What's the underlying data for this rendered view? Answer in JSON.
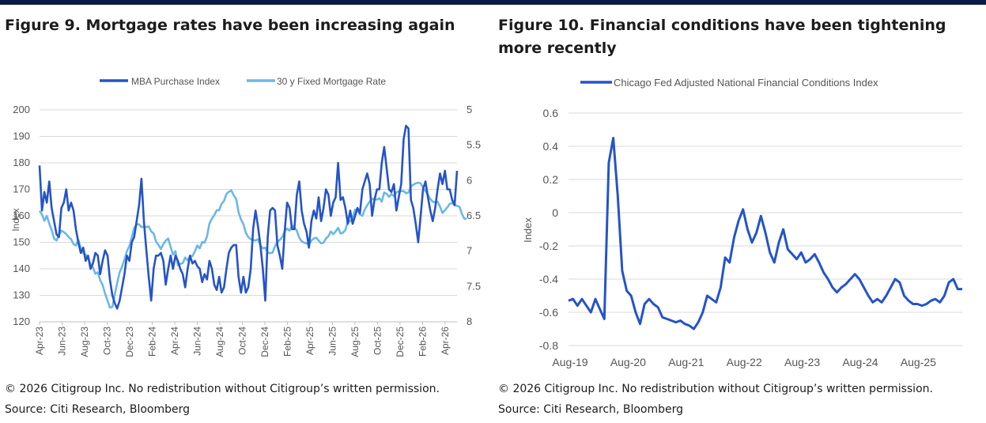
{
  "left": {
    "title": "Figure 9. Mortgage rates have been increasing again",
    "copyright": "© 2026 Citigroup Inc. No redistribution without Citigroup’s written permission.",
    "source": "Source: Citi Research, Bloomberg"
  },
  "right": {
    "title": "Figure 10. Financial conditions have been tightening more recently",
    "copyright": "© 2026 Citigroup Inc. No redistribution without Citigroup’s written permission.",
    "source": "Source: Citi Research, Bloomberg"
  },
  "colors": {
    "dark_blue": "#2554c7",
    "light_blue": "#6bb8e6",
    "grid": "#d9d9d9",
    "header_bar": "#0b1a45"
  },
  "chart_data": [
    {
      "type": "line",
      "title": "",
      "xlabel": "",
      "ylabel": "Index",
      "ylabel_right": "",
      "ylim": [
        120,
        200
      ],
      "ylim_right": [
        5,
        8
      ],
      "right_axis_inverted": true,
      "y_ticks": [
        120,
        130,
        140,
        150,
        160,
        170,
        180,
        190,
        200
      ],
      "y_ticks_right": [
        "5",
        "5.5",
        "6",
        "6.5",
        "7",
        "7.5",
        "8"
      ],
      "x_ticks": [
        "Apr-23",
        "Jun-23",
        "Aug-23",
        "Oct-23",
        "Dec-23",
        "Feb-24",
        "Apr-24",
        "Jun-24",
        "Aug-24",
        "Oct-24",
        "Dec-24",
        "Feb-25",
        "Apr-25",
        "Jun-25",
        "Aug-25",
        "Oct-25",
        "Dec-25",
        "Feb-26",
        "Apr-26"
      ],
      "grid": true,
      "legend_position": "top-center",
      "series": [
        {
          "name": "MBA Purchase Index",
          "axis": "left",
          "x_start": "Apr-23",
          "frequency": "weekly",
          "values": [
            179,
            162,
            169,
            165,
            173,
            163,
            158,
            153,
            152,
            163,
            165,
            170,
            162,
            165,
            162,
            155,
            150,
            146,
            148,
            143,
            145,
            140,
            142,
            146,
            145,
            138,
            143,
            147,
            145,
            136,
            130,
            127,
            125,
            128,
            133,
            138,
            145,
            143,
            150,
            152,
            158,
            164,
            174,
            158,
            147,
            137,
            128,
            140,
            145,
            145,
            146,
            143,
            134,
            140,
            145,
            140,
            145,
            143,
            140,
            138,
            133,
            140,
            145,
            142,
            143,
            141,
            140,
            135,
            138,
            136,
            143,
            140,
            134,
            132,
            137,
            131,
            133,
            140,
            146,
            148,
            149,
            149,
            137,
            131,
            137,
            131,
            133,
            140,
            155,
            162,
            156,
            149,
            140,
            128,
            152,
            162,
            163,
            162,
            149,
            145,
            140,
            154,
            165,
            163,
            155,
            155,
            168,
            173,
            162,
            157,
            154,
            148,
            158,
            162,
            159,
            167,
            158,
            163,
            170,
            168,
            160,
            165,
            167,
            180,
            166,
            167,
            163,
            157,
            162,
            157,
            160,
            163,
            161,
            170,
            173,
            176,
            172,
            160,
            166,
            170,
            170,
            180,
            186,
            178,
            170,
            169,
            172,
            162,
            167,
            172,
            189,
            194,
            193,
            166,
            163,
            157,
            150,
            160,
            170,
            173,
            167,
            162,
            158,
            163,
            170,
            176,
            172,
            177,
            170,
            170,
            166,
            164,
            177
          ]
        },
        {
          "name": "30 y Fixed Mortgage Rate",
          "axis": "right",
          "x_start": "Apr-23",
          "frequency": "weekly",
          "values": [
            6.43,
            6.48,
            6.57,
            6.5,
            6.61,
            6.7,
            6.82,
            6.85,
            6.77,
            6.71,
            6.73,
            6.76,
            6.8,
            6.83,
            6.9,
            6.92,
            6.84,
            6.96,
            7.03,
            7.05,
            7.09,
            7.19,
            7.23,
            7.32,
            7.3,
            7.41,
            7.48,
            7.6,
            7.7,
            7.8,
            7.79,
            7.61,
            7.45,
            7.3,
            7.22,
            7.12,
            7.0,
            6.93,
            6.8,
            6.67,
            6.62,
            6.62,
            6.66,
            6.65,
            6.66,
            6.65,
            6.72,
            6.75,
            6.86,
            6.91,
            6.97,
            6.9,
            6.85,
            6.82,
            6.94,
            7.05,
            7.0,
            7.2,
            7.18,
            7.17,
            7.09,
            7.13,
            7.07,
            7.07,
            7.0,
            6.92,
            6.96,
            6.87,
            6.88,
            6.79,
            6.61,
            6.54,
            6.49,
            6.42,
            6.42,
            6.33,
            6.29,
            6.19,
            6.16,
            6.14,
            6.21,
            6.26,
            6.45,
            6.55,
            6.62,
            6.74,
            6.8,
            6.83,
            6.84,
            6.85,
            6.83,
            6.92,
            6.96,
            6.95,
            7.02,
            7.03,
            7.02,
            6.93,
            6.87,
            6.84,
            6.8,
            6.72,
            6.68,
            6.71,
            6.64,
            6.66,
            6.71,
            6.81,
            6.86,
            6.88,
            6.89,
            6.91,
            6.85,
            6.82,
            6.81,
            6.85,
            6.89,
            6.88,
            6.82,
            6.79,
            6.72,
            6.76,
            6.72,
            6.67,
            6.75,
            6.74,
            6.7,
            6.58,
            6.58,
            6.53,
            6.41,
            6.42,
            6.48,
            6.5,
            6.41,
            6.35,
            6.3,
            6.26,
            6.26,
            6.27,
            6.25,
            6.3,
            6.17,
            6.19,
            6.23,
            6.19,
            6.22,
            6.17,
            6.15,
            6.15,
            6.15,
            6.18,
            6.17,
            6.08,
            6.06,
            6.04,
            6.03,
            6.04,
            6.1,
            6.15,
            6.2,
            6.26,
            6.3,
            6.31,
            6.3,
            6.37,
            6.46,
            6.42,
            6.38,
            6.33,
            6.32,
            6.34,
            6.36,
            6.37,
            6.47,
            6.54,
            6.54
          ]
        }
      ]
    },
    {
      "type": "line",
      "title": "",
      "xlabel": "",
      "ylabel": "Index",
      "ylim": [
        -0.8,
        0.6
      ],
      "y_ticks": [
        0.6,
        0.4,
        0.2,
        0,
        -0.2,
        -0.4,
        -0.6,
        -0.8
      ],
      "x_ticks": [
        "Aug-19",
        "Aug-20",
        "Aug-21",
        "Aug-22",
        "Aug-23",
        "Aug-24",
        "Aug-25"
      ],
      "grid": true,
      "legend_position": "top-left",
      "series": [
        {
          "name": "Chicago Fed Adjusted National Financial Conditions Index",
          "x_start": "Aug-19",
          "frequency": "monthly",
          "values": [
            -0.53,
            -0.52,
            -0.56,
            -0.52,
            -0.56,
            -0.6,
            -0.52,
            -0.58,
            -0.64,
            0.3,
            0.45,
            0.1,
            -0.35,
            -0.47,
            -0.5,
            -0.6,
            -0.67,
            -0.55,
            -0.52,
            -0.55,
            -0.57,
            -0.63,
            -0.64,
            -0.65,
            -0.66,
            -0.65,
            -0.67,
            -0.68,
            -0.7,
            -0.66,
            -0.6,
            -0.5,
            -0.52,
            -0.54,
            -0.45,
            -0.27,
            -0.3,
            -0.15,
            -0.05,
            0.02,
            -0.1,
            -0.18,
            -0.12,
            -0.02,
            -0.12,
            -0.24,
            -0.3,
            -0.18,
            -0.1,
            -0.22,
            -0.25,
            -0.28,
            -0.24,
            -0.3,
            -0.28,
            -0.25,
            -0.3,
            -0.36,
            -0.4,
            -0.45,
            -0.48,
            -0.45,
            -0.43,
            -0.4,
            -0.37,
            -0.4,
            -0.45,
            -0.5,
            -0.54,
            -0.52,
            -0.54,
            -0.5,
            -0.45,
            -0.4,
            -0.42,
            -0.5,
            -0.53,
            -0.55,
            -0.55,
            -0.56,
            -0.55,
            -0.53,
            -0.52,
            -0.54,
            -0.5,
            -0.42,
            -0.4,
            -0.46,
            -0.46
          ]
        }
      ]
    }
  ]
}
